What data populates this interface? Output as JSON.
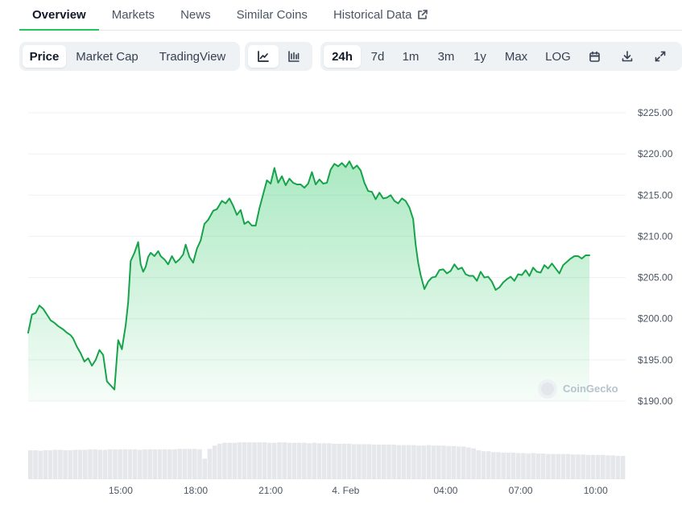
{
  "nav": {
    "tabs": [
      {
        "label": "Overview",
        "active": true
      },
      {
        "label": "Markets"
      },
      {
        "label": "News"
      },
      {
        "label": "Similar Coins"
      },
      {
        "label": "Historical Data",
        "icon": "external-link-icon"
      }
    ]
  },
  "toolbar": {
    "views": [
      "Price",
      "Market Cap",
      "TradingView"
    ],
    "active_view": "Price",
    "chart_types": [
      {
        "icon": "line-chart-icon",
        "active": true
      },
      {
        "icon": "candlestick-chart-icon",
        "active": false
      }
    ],
    "ranges": [
      "24h",
      "7d",
      "1m",
      "3m",
      "1y",
      "Max",
      "LOG"
    ],
    "active_range": "24h",
    "tools": [
      "calendar-icon",
      "download-icon",
      "expand-icon"
    ]
  },
  "watermark": "CoinGecko",
  "colors": {
    "line": "#16a34a",
    "accent": "#22c55e",
    "volume": "#e5e7eb",
    "grid": "#eef0f3"
  },
  "chart_data": {
    "type": "area",
    "xlabel": "",
    "ylabel": "",
    "ylim": [
      190,
      225
    ],
    "yticks": [
      225,
      220,
      215,
      210,
      205,
      200,
      195,
      190
    ],
    "ytick_labels": [
      "$225.00",
      "$220.00",
      "$215.00",
      "$210.00",
      "$205.00",
      "$200.00",
      "$195.00",
      "$190.00"
    ],
    "x_start_hour": 11.3,
    "x_end_hour": 35.2,
    "xticks": [
      {
        "hour": 15,
        "label": "15:00"
      },
      {
        "hour": 18,
        "label": "18:00"
      },
      {
        "hour": 21,
        "label": "21:00"
      },
      {
        "hour": 24,
        "label": "4. Feb"
      },
      {
        "hour": 28,
        "label": "04:00"
      },
      {
        "hour": 31,
        "label": "07:00"
      },
      {
        "hour": 34,
        "label": "10:00"
      }
    ],
    "grid": true,
    "series": [
      {
        "values": [
          [
            11.3,
            198.3
          ],
          [
            11.45,
            200.5
          ],
          [
            11.6,
            200.7
          ],
          [
            11.75,
            201.6
          ],
          [
            11.9,
            201.2
          ],
          [
            12.05,
            200.5
          ],
          [
            12.2,
            199.8
          ],
          [
            12.35,
            199.5
          ],
          [
            12.5,
            199.1
          ],
          [
            12.7,
            198.7
          ],
          [
            12.85,
            198.3
          ],
          [
            13.0,
            198.0
          ],
          [
            13.1,
            197.6
          ],
          [
            13.25,
            196.6
          ],
          [
            13.4,
            195.8
          ],
          [
            13.55,
            194.8
          ],
          [
            13.7,
            195.2
          ],
          [
            13.85,
            194.3
          ],
          [
            14.0,
            195.0
          ],
          [
            14.15,
            196.2
          ],
          [
            14.3,
            195.6
          ],
          [
            14.45,
            192.4
          ],
          [
            14.6,
            191.9
          ],
          [
            14.75,
            191.4
          ],
          [
            14.9,
            197.4
          ],
          [
            15.05,
            196.3
          ],
          [
            15.2,
            199.2
          ],
          [
            15.3,
            202.0
          ],
          [
            15.4,
            207.0
          ],
          [
            15.55,
            208.0
          ],
          [
            15.7,
            209.3
          ],
          [
            15.8,
            206.6
          ],
          [
            15.9,
            205.7
          ],
          [
            16.0,
            206.3
          ],
          [
            16.1,
            207.5
          ],
          [
            16.2,
            208.0
          ],
          [
            16.35,
            207.6
          ],
          [
            16.5,
            208.2
          ],
          [
            16.6,
            207.6
          ],
          [
            16.75,
            207.2
          ],
          [
            16.9,
            206.6
          ],
          [
            17.05,
            207.6
          ],
          [
            17.2,
            206.8
          ],
          [
            17.35,
            207.2
          ],
          [
            17.5,
            207.8
          ],
          [
            17.6,
            209.0
          ],
          [
            17.75,
            207.5
          ],
          [
            17.9,
            206.8
          ],
          [
            18.05,
            208.5
          ],
          [
            18.2,
            209.5
          ],
          [
            18.35,
            211.5
          ],
          [
            18.5,
            212.0
          ],
          [
            18.7,
            213.1
          ],
          [
            18.85,
            213.3
          ],
          [
            19.05,
            214.3
          ],
          [
            19.2,
            214.0
          ],
          [
            19.35,
            214.6
          ],
          [
            19.5,
            213.7
          ],
          [
            19.65,
            212.6
          ],
          [
            19.8,
            213.2
          ],
          [
            19.95,
            211.5
          ],
          [
            20.1,
            211.8
          ],
          [
            20.25,
            211.3
          ],
          [
            20.4,
            211.3
          ],
          [
            20.55,
            213.4
          ],
          [
            20.7,
            215.1
          ],
          [
            20.85,
            216.8
          ],
          [
            21.0,
            216.4
          ],
          [
            21.15,
            218.3
          ],
          [
            21.3,
            216.5
          ],
          [
            21.45,
            217.3
          ],
          [
            21.6,
            216.2
          ],
          [
            21.75,
            217.0
          ],
          [
            21.9,
            216.5
          ],
          [
            22.05,
            216.3
          ],
          [
            22.2,
            216.3
          ],
          [
            22.35,
            215.9
          ],
          [
            22.5,
            216.4
          ],
          [
            22.65,
            217.8
          ],
          [
            22.8,
            216.3
          ],
          [
            22.95,
            216.9
          ],
          [
            23.1,
            216.4
          ],
          [
            23.25,
            216.5
          ],
          [
            23.4,
            218.1
          ],
          [
            23.55,
            218.8
          ],
          [
            23.7,
            218.5
          ],
          [
            23.85,
            218.9
          ],
          [
            24.0,
            218.4
          ],
          [
            24.15,
            219.1
          ],
          [
            24.3,
            218.2
          ],
          [
            24.45,
            218.6
          ],
          [
            24.6,
            218.0
          ],
          [
            24.75,
            216.5
          ],
          [
            24.9,
            215.5
          ],
          [
            25.05,
            215.4
          ],
          [
            25.2,
            214.5
          ],
          [
            25.35,
            215.3
          ],
          [
            25.5,
            214.6
          ],
          [
            25.65,
            214.7
          ],
          [
            25.8,
            215.0
          ],
          [
            25.95,
            214.3
          ],
          [
            26.1,
            214.0
          ],
          [
            26.25,
            214.6
          ],
          [
            26.4,
            214.3
          ],
          [
            26.55,
            213.5
          ],
          [
            26.7,
            212.1
          ],
          [
            26.8,
            209.0
          ],
          [
            26.9,
            206.8
          ],
          [
            27.0,
            205.3
          ],
          [
            27.15,
            203.6
          ],
          [
            27.3,
            204.5
          ],
          [
            27.45,
            205.0
          ],
          [
            27.6,
            205.1
          ],
          [
            27.75,
            205.9
          ],
          [
            27.9,
            206.0
          ],
          [
            28.05,
            205.5
          ],
          [
            28.2,
            205.8
          ],
          [
            28.35,
            206.6
          ],
          [
            28.5,
            206.0
          ],
          [
            28.65,
            206.2
          ],
          [
            28.8,
            205.4
          ],
          [
            28.95,
            205.2
          ],
          [
            29.1,
            205.2
          ],
          [
            29.25,
            204.6
          ],
          [
            29.4,
            205.7
          ],
          [
            29.55,
            205.0
          ],
          [
            29.7,
            205.1
          ],
          [
            29.85,
            204.5
          ],
          [
            30.0,
            203.5
          ],
          [
            30.15,
            203.8
          ],
          [
            30.3,
            204.4
          ],
          [
            30.45,
            204.8
          ],
          [
            30.6,
            205.1
          ],
          [
            30.75,
            204.6
          ],
          [
            30.9,
            205.4
          ],
          [
            31.05,
            205.3
          ],
          [
            31.2,
            205.9
          ],
          [
            31.35,
            205.2
          ],
          [
            31.5,
            206.2
          ],
          [
            31.65,
            205.7
          ],
          [
            31.8,
            205.6
          ],
          [
            31.95,
            206.5
          ],
          [
            32.1,
            206.1
          ],
          [
            32.25,
            206.7
          ],
          [
            32.4,
            206.1
          ],
          [
            32.55,
            205.5
          ],
          [
            32.7,
            206.5
          ],
          [
            32.85,
            206.9
          ],
          [
            33.0,
            207.3
          ],
          [
            33.15,
            207.6
          ],
          [
            33.3,
            207.6
          ],
          [
            33.45,
            207.3
          ],
          [
            33.6,
            207.7
          ],
          [
            33.75,
            207.7
          ]
        ]
      }
    ],
    "volume": {
      "note": "relative bar heights, 0-1",
      "values": [
        0.62,
        0.62,
        0.61,
        0.62,
        0.62,
        0.63,
        0.63,
        0.62,
        0.62,
        0.63,
        0.63,
        0.63,
        0.64,
        0.64,
        0.63,
        0.63,
        0.64,
        0.64,
        0.64,
        0.64,
        0.64,
        0.64,
        0.63,
        0.64,
        0.64,
        0.64,
        0.64,
        0.64,
        0.64,
        0.64,
        0.65,
        0.65,
        0.65,
        0.65,
        0.64,
        0.44,
        0.65,
        0.72,
        0.76,
        0.78,
        0.78,
        0.78,
        0.79,
        0.79,
        0.79,
        0.79,
        0.79,
        0.79,
        0.78,
        0.78,
        0.79,
        0.79,
        0.78,
        0.78,
        0.78,
        0.78,
        0.77,
        0.78,
        0.77,
        0.77,
        0.77,
        0.76,
        0.76,
        0.76,
        0.76,
        0.75,
        0.75,
        0.75,
        0.75,
        0.74,
        0.74,
        0.74,
        0.74,
        0.74,
        0.73,
        0.73,
        0.73,
        0.73,
        0.72,
        0.72,
        0.73,
        0.72,
        0.72,
        0.72,
        0.71,
        0.71,
        0.7,
        0.7,
        0.68,
        0.66,
        0.62,
        0.6,
        0.6,
        0.58,
        0.58,
        0.57,
        0.57,
        0.57,
        0.56,
        0.56,
        0.55,
        0.56,
        0.55,
        0.55,
        0.54,
        0.54,
        0.54,
        0.54,
        0.54,
        0.53,
        0.53,
        0.53,
        0.52,
        0.52,
        0.52,
        0.52,
        0.51,
        0.51,
        0.5,
        0.5
      ]
    }
  }
}
